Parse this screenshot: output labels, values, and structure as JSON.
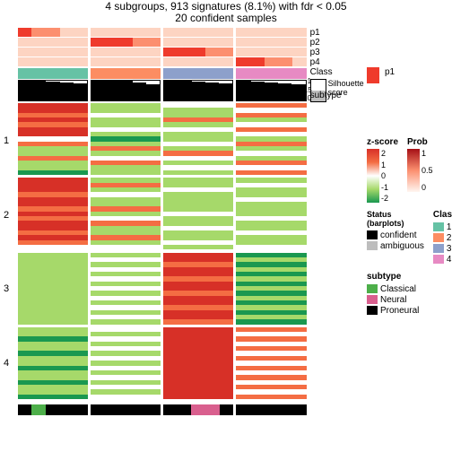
{
  "title": "4 subgroups, 913 signatures (8.1%) with fdr < 0.05",
  "subtitle": "20 confident samples",
  "colors": {
    "prob_none": "#fff5f0",
    "prob_low": "#fdd4c2",
    "prob_mid": "#fc8f6f",
    "prob_high": "#ef3b2c",
    "prob_max": "#a50f15",
    "class": [
      "#66c2a5",
      "#fc8d62",
      "#8da0cb",
      "#e78ac3"
    ],
    "zscore_pos2": "#d73027",
    "zscore_pos1": "#f46d43",
    "zscore_0": "#ffffff",
    "zscore_neg1": "#a6d96a",
    "zscore_neg2": "#1a9850",
    "status_confident": "#000000",
    "status_ambiguous": "#bdbdbd",
    "subtype_classical": "#4daf4a",
    "subtype_neural": "#d95f8e",
    "subtype_proneural": "#000000",
    "legend_border": "#000000"
  },
  "prob_rows": [
    "p1",
    "p2",
    "p3",
    "p4"
  ],
  "prob": {
    "p1": [
      [
        "h",
        "m",
        "m",
        "l",
        "l"
      ],
      [
        "l",
        "l",
        "l",
        "l",
        "l"
      ],
      [
        "l",
        "l",
        "l",
        "l",
        "l"
      ],
      [
        "l",
        "l",
        "l",
        "l",
        "l"
      ]
    ],
    "p2": [
      [
        "l",
        "l",
        "l",
        "l",
        "l"
      ],
      [
        "h",
        "h",
        "h",
        "m",
        "m"
      ],
      [
        "l",
        "l",
        "l",
        "l",
        "l"
      ],
      [
        "l",
        "l",
        "l",
        "l",
        "l"
      ]
    ],
    "p3": [
      [
        "l",
        "l",
        "l",
        "l",
        "l"
      ],
      [
        "l",
        "l",
        "l",
        "l",
        "l"
      ],
      [
        "h",
        "h",
        "h",
        "m",
        "m"
      ],
      [
        "l",
        "l",
        "l",
        "l",
        "l"
      ]
    ],
    "p4": [
      [
        "l",
        "l",
        "l",
        "l",
        "l"
      ],
      [
        "l",
        "l",
        "l",
        "l",
        "l"
      ],
      [
        "l",
        "l",
        "l",
        "l",
        "l"
      ],
      [
        "h",
        "h",
        "m",
        "m",
        "l"
      ]
    ]
  },
  "class_per_col": [
    0,
    1,
    2,
    3
  ],
  "silhouette": [
    [
      1,
      1,
      0.95,
      0.9,
      0.85
    ],
    [
      1,
      1,
      1,
      0.9,
      0.8
    ],
    [
      1,
      1,
      0.95,
      0.9,
      0.85
    ],
    [
      1,
      0.95,
      0.9,
      0.85,
      0.8
    ]
  ],
  "sil_axis": [
    "1",
    "0.5",
    "0"
  ],
  "heatmap_rows": [
    "1",
    "2",
    "3",
    "4"
  ],
  "heatmap": {
    "r1": {
      "c1": [
        "p2",
        "p2",
        "p1",
        "p2",
        "p1",
        "p2",
        "p2",
        "n0",
        "p1",
        "n1",
        "n1",
        "p1",
        "n1",
        "n1",
        "n2"
      ],
      "c2": [
        "n1",
        "n1",
        "n0",
        "n1",
        "n1",
        "n0",
        "n1",
        "n2",
        "n1",
        "p1",
        "n1",
        "n0",
        "p1",
        "n1",
        "n1"
      ],
      "c3": [
        "n0",
        "n1",
        "n1",
        "p1",
        "n1",
        "n0",
        "n1",
        "n1",
        "n0",
        "n1",
        "p1",
        "n0",
        "n1",
        "n0",
        "n1"
      ],
      "c4": [
        "p1",
        "n0",
        "p1",
        "n1",
        "n0",
        "p1",
        "n0",
        "n1",
        "p1",
        "n1",
        "n0",
        "n1",
        "p1",
        "n0",
        "p1"
      ]
    },
    "r2": {
      "c1": [
        "p2",
        "p2",
        "p2",
        "p1",
        "p2",
        "p2",
        "p1",
        "p2",
        "p1",
        "p2",
        "p2",
        "p1",
        "p2",
        "p1",
        "n0"
      ],
      "c2": [
        "n1",
        "p1",
        "n1",
        "n0",
        "n1",
        "n1",
        "p1",
        "n1",
        "n0",
        "p1",
        "n1",
        "n1",
        "p1",
        "n1",
        "n0"
      ],
      "c3": [
        "n1",
        "n1",
        "n0",
        "n1",
        "n1",
        "n1",
        "n1",
        "n0",
        "n1",
        "n1",
        "n0",
        "n1",
        "n1",
        "n0",
        "n1"
      ],
      "c4": [
        "n1",
        "n0",
        "n1",
        "n1",
        "n0",
        "n1",
        "n1",
        "n1",
        "n0",
        "n1",
        "n1",
        "n0",
        "n1",
        "n1",
        "n0"
      ]
    },
    "r3": {
      "c1": [
        "n1",
        "n1",
        "n1",
        "n1",
        "n1",
        "n1",
        "n1",
        "n1",
        "n1",
        "n1",
        "n1",
        "n1",
        "n1",
        "n1",
        "n1"
      ],
      "c2": [
        "n1",
        "n0",
        "n1",
        "n0",
        "n1",
        "n0",
        "n1",
        "n0",
        "n1",
        "n0",
        "n1",
        "n0",
        "n1",
        "n0",
        "n1"
      ],
      "c3": [
        "p2",
        "p2",
        "p1",
        "p2",
        "p2",
        "p1",
        "p2",
        "p2",
        "p1",
        "p2",
        "p2",
        "p1",
        "p2",
        "p2",
        "p1"
      ],
      "c4": [
        "n2",
        "n1",
        "n2",
        "n1",
        "n2",
        "n1",
        "n2",
        "n1",
        "n2",
        "n1",
        "n2",
        "n1",
        "n2",
        "n1",
        "n2"
      ]
    },
    "r4": {
      "c1": [
        "n1",
        "n1",
        "n2",
        "n1",
        "n1",
        "n2",
        "n1",
        "n1",
        "n2",
        "n1",
        "n1",
        "n2",
        "n1",
        "n1",
        "n2"
      ],
      "c2": [
        "n0",
        "n1",
        "n0",
        "n1",
        "n0",
        "n1",
        "n0",
        "n1",
        "n0",
        "n1",
        "n0",
        "n1",
        "n0",
        "n1",
        "n0"
      ],
      "c3": [
        "p2",
        "p2",
        "p2",
        "p2",
        "p2",
        "p2",
        "p2",
        "p2",
        "p2",
        "p2",
        "p2",
        "p2",
        "p2",
        "p2",
        "p2"
      ],
      "c4": [
        "p1",
        "n0",
        "p1",
        "n0",
        "p1",
        "n0",
        "p1",
        "n0",
        "p1",
        "n0",
        "p1",
        "n0",
        "p1",
        "n0",
        "p1"
      ]
    }
  },
  "subtype": [
    [
      "proneural",
      "classical",
      "proneural",
      "proneural",
      "proneural"
    ],
    [
      "proneural",
      "proneural",
      "proneural",
      "proneural",
      "proneural"
    ],
    [
      "proneural",
      "proneural",
      "neural",
      "neural",
      "proneural"
    ],
    [
      "proneural",
      "proneural",
      "proneural",
      "proneural",
      "proneural"
    ]
  ],
  "legend_right_labels": [
    "p1",
    "p2",
    "p3",
    "p4",
    "Class",
    "Silhouette",
    "score"
  ],
  "subtype_label": "subtype",
  "legends": {
    "zscore": {
      "title": "z-score",
      "stops": [
        "2",
        "1",
        "0",
        "-1",
        "-2"
      ]
    },
    "prob": {
      "title": "Prob",
      "stops": [
        "1",
        "0.5",
        "0"
      ]
    },
    "status": {
      "title": "Status (barplots)",
      "items": [
        [
          "confident",
          "#000000"
        ],
        [
          "ambiguous",
          "#bdbdbd"
        ]
      ]
    },
    "class": {
      "title": "Class",
      "items": [
        [
          "1",
          "#66c2a5"
        ],
        [
          "2",
          "#fc8d62"
        ],
        [
          "3",
          "#8da0cb"
        ],
        [
          "4",
          "#e78ac3"
        ]
      ]
    },
    "subtype": {
      "title": "subtype",
      "items": [
        [
          "Classical",
          "#4daf4a"
        ],
        [
          "Neural",
          "#d95f8e"
        ],
        [
          "Proneural",
          "#000000"
        ]
      ]
    }
  }
}
